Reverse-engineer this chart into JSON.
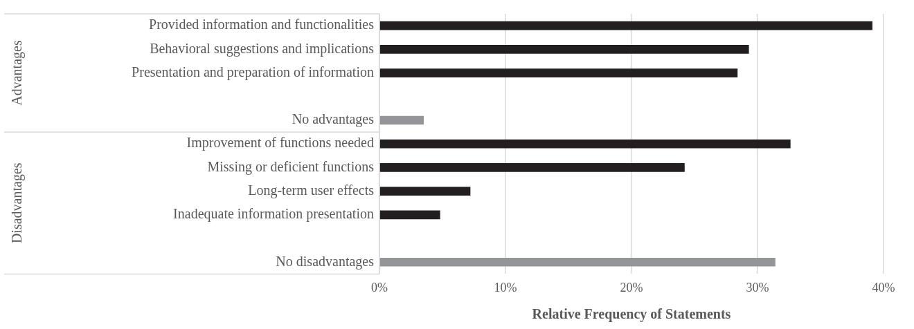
{
  "chart_data": {
    "type": "bar",
    "orientation": "horizontal",
    "xlabel": "Relative Frequency of Statements",
    "categories": [
      "Provided information and functionalities",
      "Behavioral suggestions and implications",
      "Presentation and preparation of information",
      null,
      "No advantages",
      "Improvement of functions needed",
      "Missing or deficient functions",
      "Long-term user effects",
      "Inadequate information presentation",
      null,
      "No disadvantages"
    ],
    "values": [
      39.1,
      29.3,
      28.4,
      null,
      3.5,
      32.6,
      24.2,
      7.2,
      4.8,
      null,
      31.4
    ],
    "colors": [
      "#231f20",
      "#231f20",
      "#231f20",
      "#231f20",
      "#939598",
      "#231f20",
      "#231f20",
      "#231f20",
      "#231f20",
      "#231f20",
      "#939598"
    ],
    "xlim": [
      0,
      40
    ],
    "xticks": [
      {
        "value": 0,
        "label": "0%"
      },
      {
        "value": 10,
        "label": "10%"
      },
      {
        "value": 20,
        "label": "20%"
      },
      {
        "value": 30,
        "label": "30%"
      },
      {
        "value": 40,
        "label": "40%"
      }
    ],
    "grid": "x",
    "legend": false,
    "annotations": [
      "Advantages",
      "Disadvantages"
    ]
  }
}
